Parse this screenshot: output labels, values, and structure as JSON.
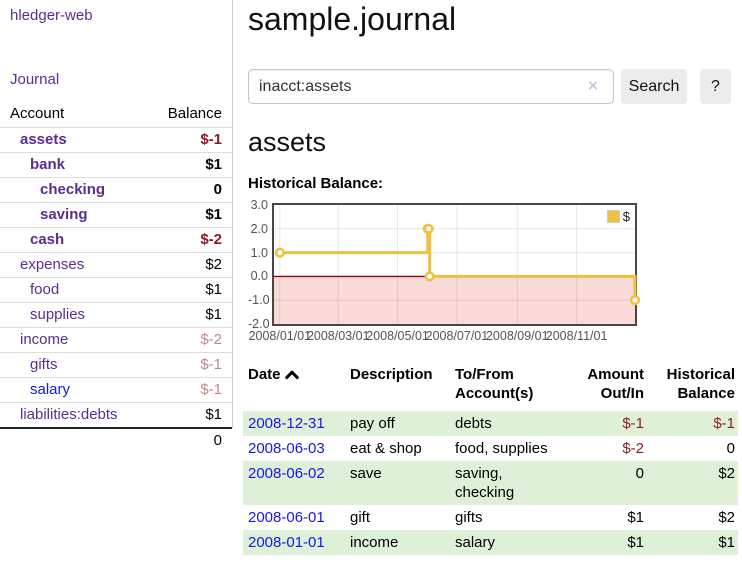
{
  "app": {
    "brand": "hledger-web",
    "nav_journal": "Journal"
  },
  "sidebar": {
    "header": {
      "account": "Account",
      "balance": "Balance"
    },
    "accounts": [
      {
        "name": "assets",
        "level": 1,
        "bold": true,
        "balance": "$-1",
        "balance_style": "neg-strong"
      },
      {
        "name": "bank",
        "level": 2,
        "bold": true,
        "balance": "$1",
        "balance_style": "pos"
      },
      {
        "name": "checking",
        "level": 3,
        "bold": true,
        "balance": "0",
        "balance_style": "pos"
      },
      {
        "name": "saving",
        "level": 3,
        "bold": true,
        "balance": "$1",
        "balance_style": "pos"
      },
      {
        "name": "cash",
        "level": 2,
        "bold": true,
        "balance": "$-2",
        "balance_style": "neg-strong"
      },
      {
        "name": "expenses",
        "level": 1,
        "bold": false,
        "balance": "$2",
        "balance_style": "pos"
      },
      {
        "name": "food",
        "level": 2,
        "bold": false,
        "balance": "$1",
        "balance_style": "pos"
      },
      {
        "name": "supplies",
        "level": 2,
        "bold": false,
        "balance": "$1",
        "balance_style": "pos"
      },
      {
        "name": "income",
        "level": 1,
        "bold": false,
        "balance": "$-2",
        "balance_style": "neg-muted"
      },
      {
        "name": "gifts",
        "level": 2,
        "bold": false,
        "balance": "$-1",
        "balance_style": "neg-muted"
      },
      {
        "name": "salary",
        "level": 2,
        "bold": false,
        "balance": "$-1",
        "balance_style": "neg-muted",
        "link_color": "blue"
      },
      {
        "name": "liabilities:debts",
        "level": 1,
        "bold": false,
        "balance": "$1",
        "balance_style": "pos"
      }
    ],
    "total": "0"
  },
  "header": {
    "title": "sample.journal"
  },
  "search": {
    "value": "inacct:assets",
    "clear_icon": "×",
    "button": "Search",
    "help_button": "?"
  },
  "account_page": {
    "title": "assets",
    "chart_label": "Historical Balance:"
  },
  "chart_data": {
    "type": "line",
    "step": true,
    "title": "Historical Balance",
    "legend": [
      {
        "label": "$",
        "color": "#edc240"
      }
    ],
    "legend_position": "top-right",
    "grid": true,
    "xlim": [
      "2007-12-26",
      "2008-12-31"
    ],
    "ylim": [
      -2,
      3
    ],
    "x_ticks": [
      "2008/01/01",
      "2008/03/01",
      "2008/05/01",
      "2008/07/01",
      "2008/09/01",
      "2008/11/01"
    ],
    "y_ticks": [
      3,
      2,
      1,
      0,
      -1,
      -2
    ],
    "points": [
      {
        "x": "2008-01-01",
        "y": 1
      },
      {
        "x": "2008-06-01",
        "y": 2
      },
      {
        "x": "2008-06-02",
        "y": 2
      },
      {
        "x": "2008-06-03",
        "y": 0
      },
      {
        "x": "2008-12-31",
        "y": -1
      }
    ],
    "line_color": "#edc240",
    "negative_region_color": "#fbdada",
    "zero_line_color": "#9b0000",
    "grid_line_color": "rgba(0,0,0,0.09)"
  },
  "register": {
    "columns": [
      {
        "lines": [
          "Date"
        ],
        "sort": true,
        "align": "left"
      },
      {
        "lines": [
          "Description"
        ],
        "align": "left"
      },
      {
        "lines": [
          "To/From",
          "Account(s)"
        ],
        "align": "left"
      },
      {
        "lines": [
          "Amount",
          "Out/In"
        ],
        "align": "right"
      },
      {
        "lines": [
          "Historical",
          "Balance"
        ],
        "align": "right"
      }
    ],
    "rows": [
      {
        "date": "2008-12-31",
        "description": "pay off",
        "accounts": "debts",
        "amount": "$-1",
        "amount_neg": true,
        "balance": "$-1",
        "balance_neg": true,
        "shade": true
      },
      {
        "date": "2008-06-03",
        "description": "eat & shop",
        "accounts": "food, supplies",
        "amount": "$-2",
        "amount_neg": true,
        "balance": "0",
        "balance_neg": false,
        "shade": false
      },
      {
        "date": "2008-06-02",
        "description": "save",
        "accounts": "saving, checking",
        "amount": "0",
        "amount_neg": false,
        "balance": "$2",
        "balance_neg": false,
        "shade": true
      },
      {
        "date": "2008-06-01",
        "description": "gift",
        "accounts": "gifts",
        "amount": "$1",
        "amount_neg": false,
        "balance": "$2",
        "balance_neg": false,
        "shade": false
      },
      {
        "date": "2008-01-01",
        "description": "income",
        "accounts": "salary",
        "amount": "$1",
        "amount_neg": false,
        "balance": "$1",
        "balance_neg": false,
        "shade": true
      }
    ]
  },
  "colors": {
    "link_purple": "#5c2d91",
    "link_blue": "#1717e6",
    "negative_strong": "#8b1a2b",
    "negative_muted": "#c4878d",
    "row_shade_green": "#dff0d8",
    "chart_gold": "#edc240",
    "chart_negative_pink": "#fbdada",
    "button_gray": "#ececec"
  }
}
